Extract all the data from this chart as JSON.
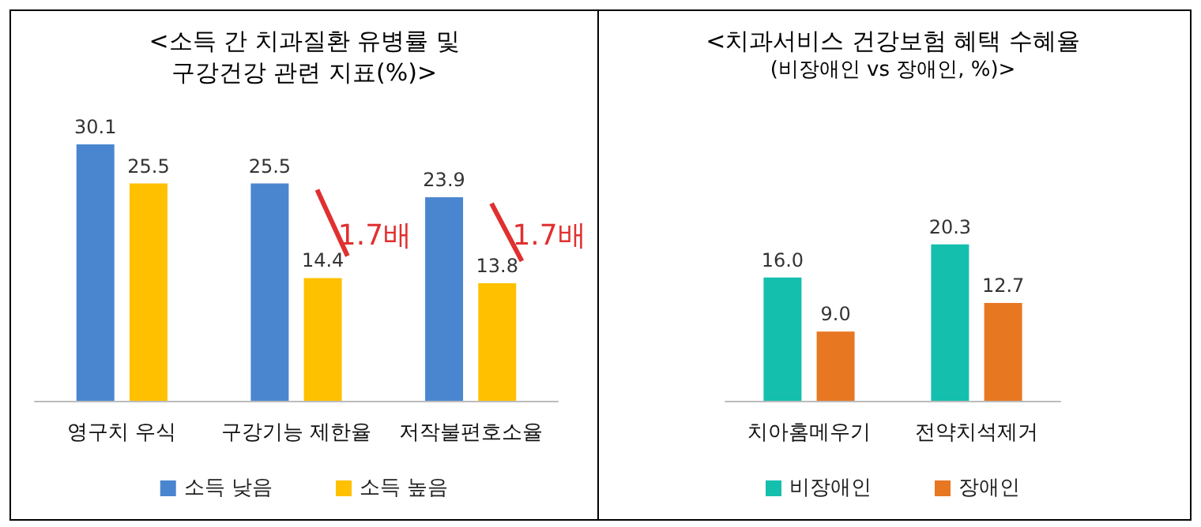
{
  "chart_data": [
    {
      "type": "bar",
      "title": "<소득 간 치과질환 유병률 및\n구강건강 관련 지표(%)>",
      "categories": [
        "영구치 우식",
        "구강기능 제한율",
        "저작불편호소율"
      ],
      "grid": false,
      "legend": "bottom",
      "tick_labels": "x",
      "series": [
        {
          "name": "소득 낮음",
          "color": "#4a86d0",
          "values": [
            30.1,
            25.5,
            23.9
          ],
          "value_labels": [
            "30.1",
            "25.5",
            "23.9"
          ]
        },
        {
          "name": "소득 높음",
          "color": "#ffc000",
          "values": [
            25.5,
            14.4,
            13.8
          ],
          "value_labels": [
            "25.5",
            "14.4",
            "13.8"
          ]
        }
      ],
      "annotations": [
        {
          "text": "1.7배",
          "x": "구강기능 제한율",
          "y": 21
        },
        {
          "text": "1.7배",
          "x": "저작불편호소율",
          "y": 21
        }
      ]
    },
    {
      "type": "bar",
      "title": "<치과서비스 건강보험 혜택 수혜율",
      "subtitle": "(비장애인 vs 장애인, %)>",
      "categories": [
        "치아홈메우기",
        "전약치석제거"
      ],
      "grid": false,
      "legend": "bottom",
      "tick_labels": "x",
      "series": [
        {
          "name": "비장애인",
          "color": "#14bfae",
          "values": [
            16.0,
            20.3
          ],
          "value_labels": [
            "16.0",
            "20.3"
          ]
        },
        {
          "name": "장애인",
          "color": "#e87722",
          "values": [
            9.0,
            12.7
          ],
          "value_labels": [
            "9.0",
            "12.7"
          ]
        }
      ]
    }
  ]
}
